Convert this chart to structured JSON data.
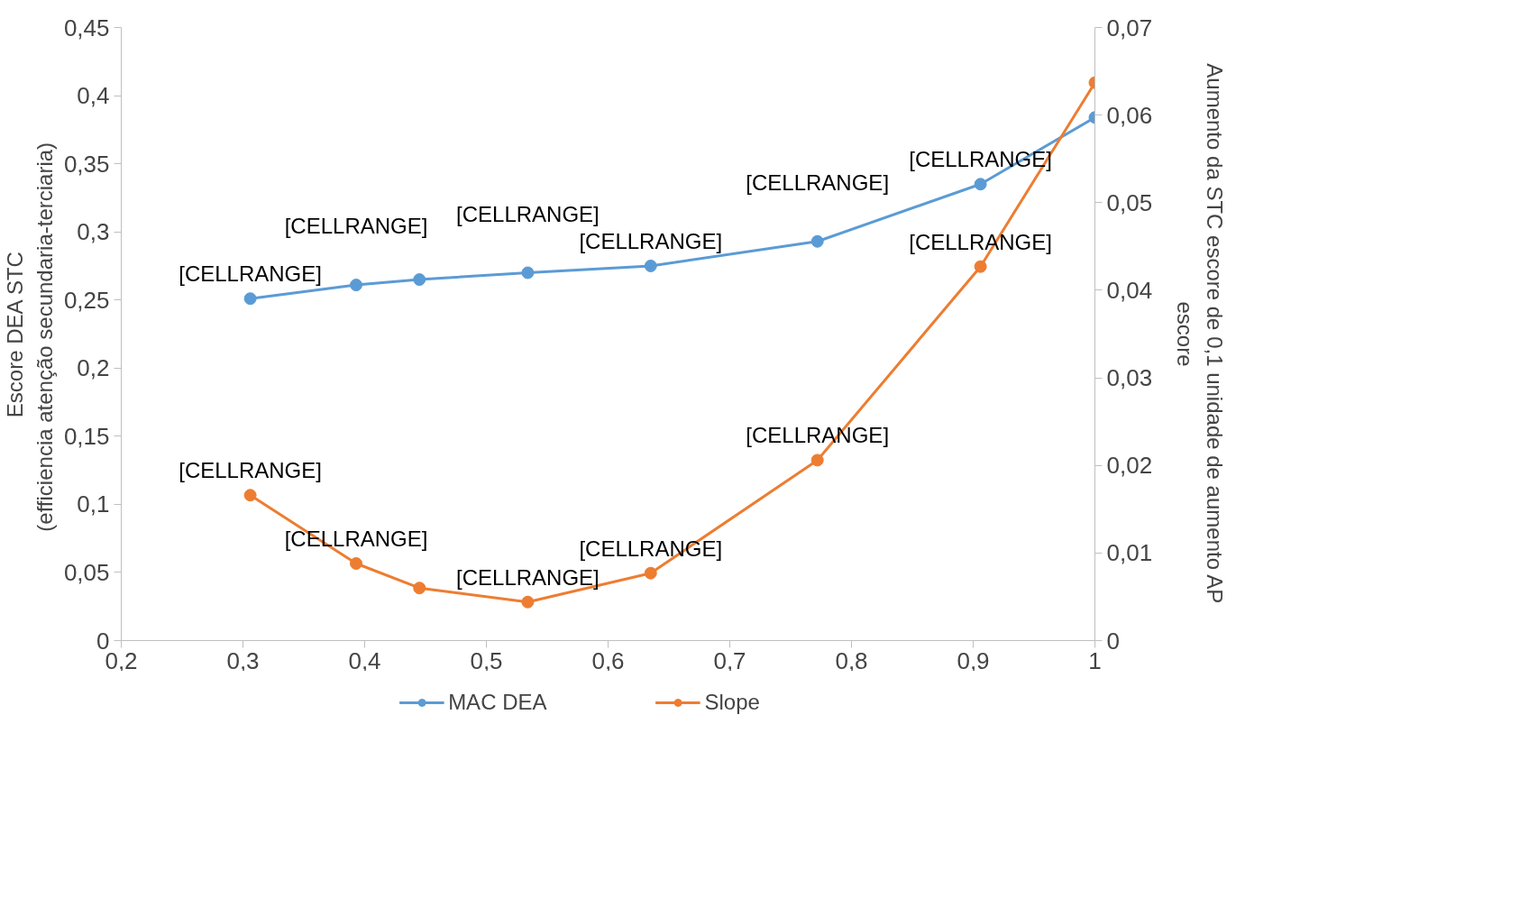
{
  "chart_data": {
    "type": "line",
    "ylabel": "Escore DEA STC\n(efficiencia atenção  secundaria-terciaria)",
    "y2label": "Aumento da STC escore de 0,1 unidade de aumento AP\nescore",
    "x": [
      0.306,
      0.393,
      0.445,
      0.534,
      0.635,
      0.772,
      0.906,
      1.0
    ],
    "series": [
      {
        "name": "MAC DEA",
        "color": "#5b9bd5",
        "values": [
          0.251,
          0.261,
          0.265,
          0.27,
          0.275,
          0.293,
          0.335,
          0.384
        ],
        "value_labels": [
          "[CELLRANGE]",
          "[CELLRANGE]",
          null,
          "[CELLRANGE]",
          "[CELLRANGE]",
          "[CELLRANGE]",
          "[CELLRANGE]",
          null
        ]
      },
      {
        "name": "Slope",
        "color": "#ed7d31",
        "axis": "y2",
        "values": [
          0.0166,
          0.0088,
          0.006,
          0.0044,
          0.0077,
          0.0206,
          0.0427,
          0.0637
        ],
        "value_labels": [
          "[CELLRANGE]",
          "[CELLRANGE]",
          null,
          "[CELLRANGE]",
          "[CELLRANGE]",
          "[CELLRANGE]",
          "[CELLRANGE]",
          null
        ]
      }
    ],
    "xlim": [
      0.2,
      1.0
    ],
    "xticks": [
      {
        "value": 0.2,
        "label": "0,2"
      },
      {
        "value": 0.3,
        "label": "0,3"
      },
      {
        "value": 0.4,
        "label": "0,4"
      },
      {
        "value": 0.5,
        "label": "0,5"
      },
      {
        "value": 0.6,
        "label": "0,6"
      },
      {
        "value": 0.7,
        "label": "0,7"
      },
      {
        "value": 0.8,
        "label": "0,8"
      },
      {
        "value": 0.9,
        "label": "0,9"
      },
      1
    ],
    "ylim": [
      0,
      0.45
    ],
    "yticks": [
      0,
      {
        "value": 0.05,
        "label": "0,05"
      },
      {
        "value": 0.1,
        "label": "0,1"
      },
      {
        "value": 0.15,
        "label": "0,15"
      },
      {
        "value": 0.2,
        "label": "0,2"
      },
      {
        "value": 0.25,
        "label": "0,25"
      },
      {
        "value": 0.3,
        "label": "0,3"
      },
      {
        "value": 0.35,
        "label": "0,35"
      },
      {
        "value": 0.4,
        "label": "0,4"
      },
      {
        "value": 0.45,
        "label": "0,45"
      }
    ],
    "y2lim": [
      0,
      0.07
    ],
    "y2ticks": [
      0,
      {
        "value": 0.01,
        "label": "0,01"
      },
      {
        "value": 0.02,
        "label": "0,02"
      },
      {
        "value": 0.03,
        "label": "0,03"
      },
      {
        "value": 0.04,
        "label": "0,04"
      },
      {
        "value": 0.05,
        "label": "0,05"
      },
      {
        "value": 0.06,
        "label": "0,06"
      },
      {
        "value": 0.07,
        "label": "0,07"
      }
    ],
    "grid": false,
    "legend": "bottom",
    "marker": "circle",
    "line_style": "solid"
  }
}
